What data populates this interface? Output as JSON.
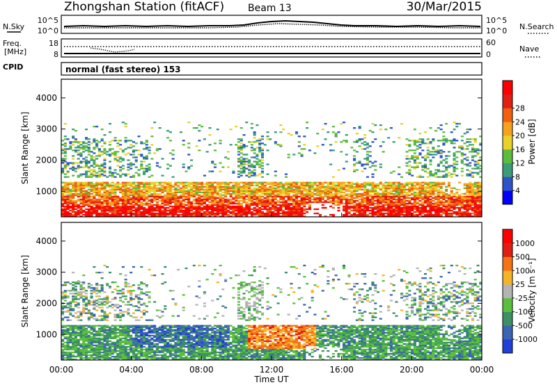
{
  "header": {
    "title": "Zhongshan Station (fitACF)",
    "beam": "Beam 13",
    "date": "30/Mar/2015"
  },
  "panels": {
    "sky_noise": {
      "left_label": "N.Sky",
      "left_ticks": [
        "10^5",
        "10^0"
      ],
      "right_label": "N.Search",
      "right_ticks": [
        "10^5",
        "10^0"
      ]
    },
    "frequency": {
      "left_label_line1": "Freq.",
      "left_label_line2": "[MHz]",
      "left_ticks": [
        "18",
        "8"
      ],
      "right_label": "Nave",
      "right_ticks": [
        "60",
        "0"
      ]
    },
    "cpid": {
      "left_label": "CPID",
      "text": "normal (fast stereo) 153"
    }
  },
  "chart_data": [
    {
      "type": "heatmap",
      "quantity": "Power",
      "ylabel": "Slant Range [km]",
      "yticks": [
        1000,
        2000,
        3000,
        4000
      ],
      "ylim": [
        180,
        4600
      ],
      "xlim_hours": [
        0,
        24
      ],
      "colorbar_label": "Power [dB]",
      "colorbar_ticks": [
        "4",
        "8",
        "12",
        "16",
        "20",
        "24",
        "28"
      ],
      "colorbar_colors": [
        "#0000ff",
        "#2e55c8",
        "#3c9c78",
        "#5cbc3c",
        "#e8d22a",
        "#f5a21e",
        "#f06010",
        "#e02014",
        "#ff0000"
      ]
    },
    {
      "type": "heatmap",
      "quantity": "Velocity",
      "ylabel": "Slant Range [km]",
      "yticks": [
        1000,
        2000,
        3000,
        4000
      ],
      "ylim": [
        180,
        4600
      ],
      "xlim_hours": [
        0,
        24
      ],
      "colorbar_label": "Velocity [m s⁻¹]",
      "colorbar_ticks": [
        "1000",
        "500",
        "100",
        "25",
        "-25",
        "-100",
        "-500",
        "-1000"
      ],
      "colorbar_colors": [
        "#1f3fd8",
        "#3c64b4",
        "#3c9064",
        "#5ac03c",
        "#b4b4b4",
        "#f5b428",
        "#f57314",
        "#e01e14",
        "#ff0000"
      ]
    }
  ],
  "xaxis": {
    "ticks": [
      "00:00",
      "04:00",
      "08:00",
      "12:00",
      "16:00",
      "20:00",
      "00:00"
    ],
    "label": "Time UT"
  }
}
